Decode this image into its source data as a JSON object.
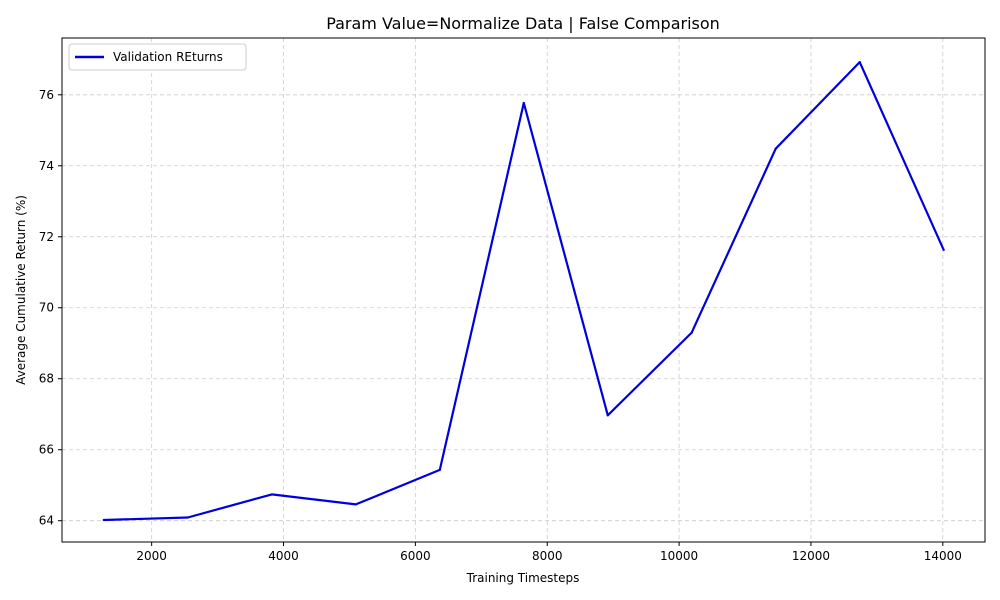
{
  "chart_data": {
    "type": "line",
    "title": "Param Value=Normalize Data | False Comparison",
    "xlabel": "Training Timesteps",
    "ylabel": "Average Cumulative Return (%)",
    "xlim": [
      640,
      14640
    ],
    "ylim": [
      63.4,
      77.6
    ],
    "xticks": [
      2000,
      4000,
      6000,
      8000,
      10000,
      12000,
      14000
    ],
    "yticks": [
      64,
      66,
      68,
      70,
      72,
      74,
      76
    ],
    "grid": true,
    "legend_position": "top-left",
    "series": [
      {
        "name": "Validation REturns",
        "color": "#0000dd",
        "x": [
          1274,
          2548,
          3822,
          5096,
          6370,
          7644,
          8918,
          10192,
          11466,
          12740,
          14014
        ],
        "y": [
          64.02,
          64.09,
          64.74,
          64.46,
          65.43,
          75.77,
          66.97,
          69.3,
          74.48,
          76.92,
          71.63
        ]
      }
    ]
  }
}
